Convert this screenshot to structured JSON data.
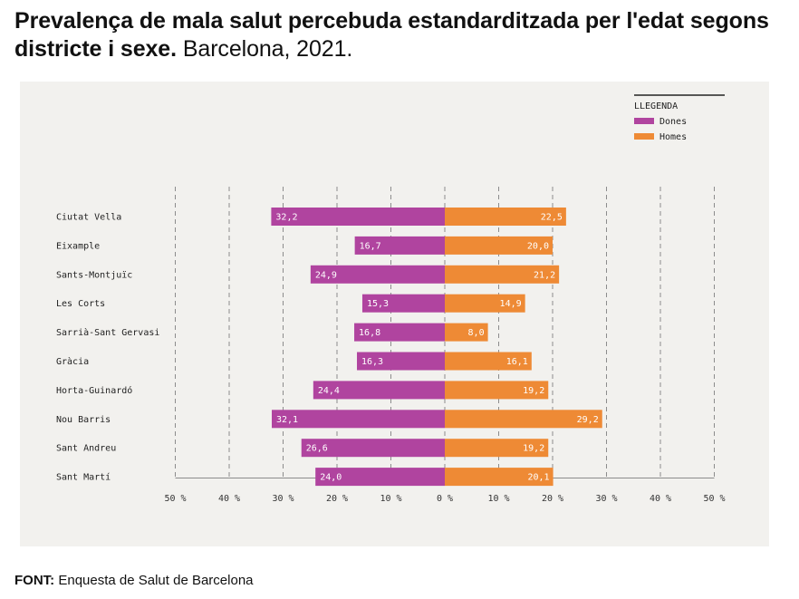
{
  "header": {
    "title": "Prevalença de mala salut percebuda estandarditzada per l'edat segons districte i sexe.",
    "subtitle": "Barcelona, 2021."
  },
  "legend": {
    "title": "LLEGENDA",
    "items": [
      {
        "label": "Dones",
        "color": "#b0449f"
      },
      {
        "label": "Homes",
        "color": "#ee8a35"
      }
    ]
  },
  "chart_data": {
    "type": "bar",
    "orientation": "horizontal-diverging",
    "categories": [
      "Ciutat Vella",
      "Eixample",
      "Sants-Montjuïc",
      "Les Corts",
      "Sarrià-Sant Gervasi",
      "Gràcia",
      "Horta-Guinardó",
      "Nou Barris",
      "Sant Andreu",
      "Sant Martí"
    ],
    "series": [
      {
        "name": "Dones",
        "color": "#b0449f",
        "values": [
          32.2,
          16.7,
          24.9,
          15.3,
          16.8,
          16.3,
          24.4,
          32.1,
          26.6,
          24.0
        ],
        "labels": [
          "32,2",
          "16,7",
          "24,9",
          "15,3",
          "16,8",
          "16,3",
          "24,4",
          "32,1",
          "26,6",
          "24,0"
        ]
      },
      {
        "name": "Homes",
        "color": "#ee8a35",
        "values": [
          22.5,
          20.0,
          21.2,
          14.9,
          8.0,
          16.1,
          19.2,
          29.2,
          19.2,
          20.1
        ],
        "labels": [
          "22,5",
          "20,0",
          "21,2",
          "14,9",
          "8,0",
          "16,1",
          "19,2",
          "29,2",
          "19,2",
          "20,1"
        ]
      }
    ],
    "xlim": [
      -50,
      50
    ],
    "ticks": [
      -50,
      -40,
      -30,
      -20,
      -10,
      0,
      10,
      20,
      30,
      40,
      50
    ],
    "tick_labels": [
      "50 %",
      "40 %",
      "30 %",
      "20 %",
      "10 %",
      "0 %",
      "10 %",
      "20 %",
      "30 %",
      "40 %",
      "50 %"
    ],
    "grid": "vertical dashed",
    "legend_position": "top-right"
  },
  "footer": {
    "source_label": "FONT:",
    "source_text": "Enquesta de Salut de Barcelona"
  }
}
